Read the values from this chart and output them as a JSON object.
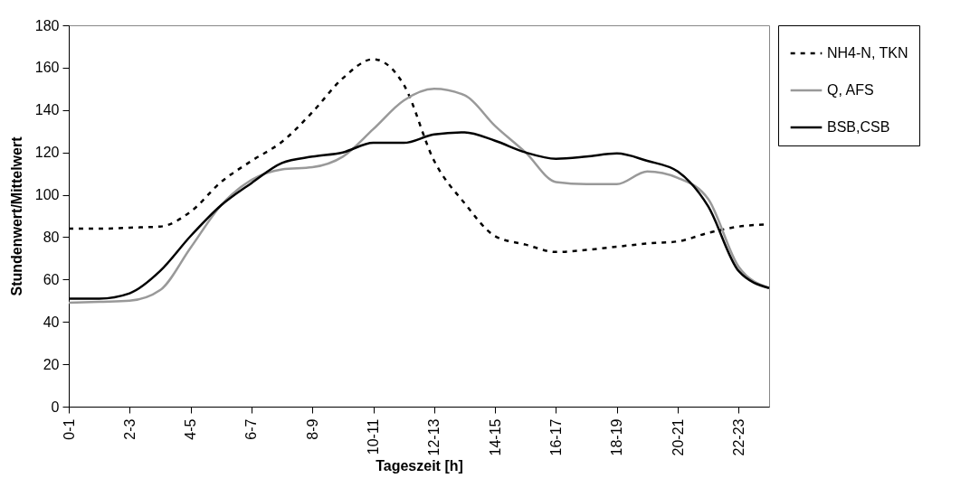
{
  "chart_data": {
    "type": "line",
    "xlabel": "Tageszeit [h]",
    "ylabel": "Stundenwert/Mittelwert",
    "categories": [
      "0-1",
      null,
      "2-3",
      null,
      "4-5",
      null,
      "6-7",
      null,
      "8-9",
      null,
      "10-11",
      null,
      "12-13",
      null,
      "14-15",
      null,
      "16-17",
      null,
      "18-19",
      null,
      "20-21",
      null,
      "22-23",
      null
    ],
    "series": [
      {
        "name": "NH4-N, TKN",
        "color": "#000000",
        "line_style": "dashed",
        "values": [
          84,
          84,
          84.5,
          85,
          92,
          106,
          116,
          125,
          139,
          155,
          164,
          152,
          116,
          96,
          80.5,
          76.5,
          73,
          74,
          75.5,
          77,
          78,
          82,
          85,
          86
        ]
      },
      {
        "name": "Q, AFS",
        "color": "#999999",
        "line_style": "solid",
        "values": [
          49,
          49.5,
          50,
          55,
          75,
          95,
          107,
          112,
          113,
          118,
          131,
          144.5,
          150,
          147,
          132.5,
          120,
          106,
          105,
          105,
          111,
          108,
          98,
          66,
          56
        ]
      },
      {
        "name": "BSB,CSB",
        "color": "#000000",
        "line_style": "solid",
        "values": [
          51,
          51,
          53.5,
          64,
          80.5,
          95,
          105.5,
          115,
          118,
          120,
          124.5,
          124.5,
          128.5,
          129.5,
          125.5,
          120,
          117,
          118,
          119.5,
          116,
          111,
          94.5,
          64,
          56
        ]
      }
    ],
    "ylim": [
      0,
      180
    ],
    "yticks": [
      0,
      20,
      40,
      60,
      80,
      100,
      120,
      140,
      160,
      180
    ],
    "grid": false,
    "legend": "top right",
    "marker": "none"
  }
}
